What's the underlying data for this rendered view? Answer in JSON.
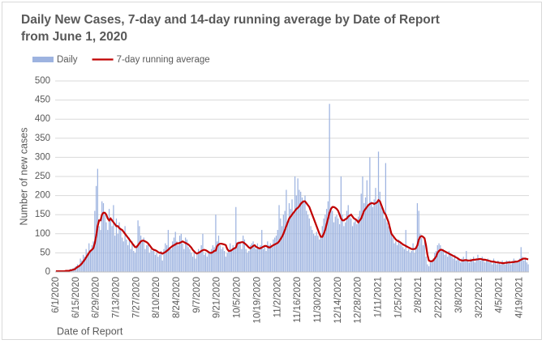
{
  "chart_data": {
    "type": "bar_line",
    "title": "Daily New Cases, 7-day and 14-day running average by Date of Report from June 1, 2020",
    "y_label": "Number of new cases",
    "x_label": "Date of Report",
    "ylim": [
      0,
      500
    ],
    "yticks": [
      0,
      50,
      100,
      150,
      200,
      250,
      300,
      350,
      400,
      450,
      500
    ],
    "grid": true,
    "categories": [
      "6/1/2020",
      null,
      null,
      null,
      null,
      null,
      null,
      null,
      null,
      null,
      null,
      null,
      null,
      null,
      "6/15/2020",
      null,
      null,
      null,
      null,
      null,
      null,
      null,
      null,
      null,
      null,
      null,
      null,
      null,
      "6/29/2020",
      null,
      null,
      null,
      null,
      null,
      null,
      null,
      null,
      null,
      null,
      null,
      null,
      null,
      "7/13/2020",
      null,
      null,
      null,
      null,
      null,
      null,
      null,
      null,
      null,
      null,
      null,
      null,
      null,
      "7/27/2020",
      null,
      null,
      null,
      null,
      null,
      null,
      null,
      null,
      null,
      null,
      null,
      null,
      null,
      "8/10/2020",
      null,
      null,
      null,
      null,
      null,
      null,
      null,
      null,
      null,
      null,
      null,
      null,
      null,
      "8/24/2020",
      null,
      null,
      null,
      null,
      null,
      null,
      null,
      null,
      null,
      null,
      null,
      null,
      null,
      "9/7/2020",
      null,
      null,
      null,
      null,
      null,
      null,
      null,
      null,
      null,
      null,
      null,
      null,
      null,
      "9/21/2020",
      null,
      null,
      null,
      null,
      null,
      null,
      null,
      null,
      null,
      null,
      null,
      null,
      null,
      "10/5/2020",
      null,
      null,
      null,
      null,
      null,
      null,
      null,
      null,
      null,
      null,
      null,
      null,
      null,
      "10/19/2020",
      null,
      null,
      null,
      null,
      null,
      null,
      null,
      null,
      null,
      null,
      null,
      null,
      null,
      "11/2/2020",
      null,
      null,
      null,
      null,
      null,
      null,
      null,
      null,
      null,
      null,
      null,
      null,
      null,
      "11/16/2020",
      null,
      null,
      null,
      null,
      null,
      null,
      null,
      null,
      null,
      null,
      null,
      null,
      null,
      "11/30/2020",
      null,
      null,
      null,
      null,
      null,
      null,
      null,
      null,
      null,
      null,
      null,
      null,
      null,
      "12/14/2020",
      null,
      null,
      null,
      null,
      null,
      null,
      null,
      null,
      null,
      null,
      null,
      null,
      null,
      "12/28/2020",
      null,
      null,
      null,
      null,
      null,
      null,
      null,
      null,
      null,
      null,
      null,
      null,
      null,
      "1/11/2021",
      null,
      null,
      null,
      null,
      null,
      null,
      null,
      null,
      null,
      null,
      null,
      null,
      null,
      "1/25/2021",
      null,
      null,
      null,
      null,
      null,
      null,
      null,
      null,
      null,
      null,
      null,
      null,
      null,
      "2/8/2021",
      null,
      null,
      null,
      null,
      null,
      null,
      null,
      null,
      null,
      null,
      null,
      null,
      null,
      "2/22/2021",
      null,
      null,
      null,
      null,
      null,
      null,
      null,
      null,
      null,
      null,
      null,
      null,
      null,
      "3/8/2021",
      null,
      null,
      null,
      null,
      null,
      null,
      null,
      null,
      null,
      null,
      null,
      null,
      null,
      "3/22/2021",
      null,
      null,
      null,
      null,
      null,
      null,
      null,
      null,
      null,
      null,
      null,
      null,
      null,
      "4/5/2021",
      null,
      null,
      null,
      null,
      null,
      null,
      null,
      null,
      null,
      null,
      null,
      null,
      null,
      "4/19/2021",
      null,
      null,
      null,
      null,
      null,
      null
    ],
    "series": [
      {
        "name": "Daily",
        "type": "bar",
        "color": "#9db3e0",
        "values": [
          1,
          3,
          2,
          1,
          4,
          2,
          2,
          5,
          3,
          4,
          8,
          6,
          10,
          12,
          15,
          20,
          18,
          35,
          30,
          45,
          40,
          60,
          50,
          75,
          55,
          70,
          80,
          160,
          225,
          270,
          120,
          110,
          185,
          180,
          150,
          130,
          110,
          165,
          140,
          120,
          175,
          95,
          140,
          100,
          130,
          110,
          90,
          80,
          120,
          85,
          70,
          90,
          60,
          80,
          55,
          50,
          70,
          135,
          120,
          95,
          80,
          90,
          60,
          70,
          75,
          50,
          60,
          55,
          60,
          45,
          50,
          40,
          45,
          55,
          30,
          60,
          75,
          70,
          110,
          65,
          60,
          80,
          90,
          105,
          80,
          70,
          95,
          100,
          75,
          60,
          90,
          85,
          65,
          60,
          50,
          40,
          55,
          35,
          45,
          60,
          55,
          70,
          100,
          45,
          50,
          40,
          55,
          50,
          60,
          70,
          65,
          150,
          80,
          95,
          70,
          60,
          65,
          55,
          40,
          50,
          60,
          75,
          55,
          70,
          60,
          170,
          70,
          80,
          75,
          60,
          95,
          85,
          60,
          50,
          55,
          70,
          75,
          80,
          65,
          60,
          75,
          60,
          70,
          110,
          60,
          65,
          55,
          80,
          70,
          75,
          65,
          85,
          90,
          95,
          110,
          175,
          140,
          120,
          150,
          160,
          215,
          130,
          180,
          165,
          190,
          150,
          250,
          200,
          245,
          215,
          210,
          195,
          185,
          200,
          160,
          150,
          140,
          120,
          110,
          100,
          95,
          105,
          95,
          85,
          90,
          120,
          140,
          150,
          165,
          185,
          440,
          170,
          160,
          130,
          145,
          150,
          140,
          125,
          250,
          150,
          120,
          130,
          160,
          175,
          150,
          140,
          120,
          130,
          135,
          125,
          145,
          160,
          205,
          250,
          180,
          195,
          240,
          175,
          300,
          185,
          170,
          190,
          220,
          185,
          315,
          210,
          170,
          160,
          140,
          285,
          130,
          120,
          110,
          100,
          90,
          75,
          80,
          70,
          85,
          75,
          70,
          65,
          60,
          110,
          55,
          60,
          50,
          55,
          75,
          50,
          60,
          180,
          160,
          100,
          90,
          70,
          80,
          40,
          20,
          15,
          25,
          30,
          35,
          50,
          55,
          70,
          75,
          70,
          55,
          60,
          45,
          50,
          40,
          55,
          45,
          40,
          35,
          45,
          30,
          35,
          30,
          25,
          35,
          40,
          30,
          55,
          30,
          25,
          35,
          30,
          40,
          25,
          35,
          45,
          35,
          30,
          40,
          35,
          25,
          30,
          35,
          25,
          30,
          20,
          35,
          25,
          20,
          30,
          25,
          20,
          30,
          25,
          20,
          30,
          25,
          30,
          20,
          25,
          35,
          30,
          25,
          30,
          35,
          65,
          40,
          30,
          35,
          25,
          20
        ]
      },
      {
        "name": "7-day running average",
        "type": "line",
        "color": "#c00000",
        "values": [
          2,
          2,
          2,
          2,
          2,
          2,
          2,
          3,
          3,
          3,
          4,
          5,
          6,
          7,
          10,
          13,
          15,
          18,
          22,
          27,
          32,
          38,
          44,
          50,
          55,
          58,
          62,
          75,
          95,
          120,
          135,
          135,
          150,
          155,
          155,
          150,
          140,
          135,
          140,
          135,
          130,
          125,
          120,
          120,
          115,
          112,
          110,
          105,
          100,
          95,
          90,
          85,
          80,
          75,
          70,
          65,
          65,
          70,
          75,
          80,
          82,
          82,
          80,
          78,
          75,
          70,
          65,
          60,
          58,
          57,
          55,
          52,
          50,
          50,
          48,
          50,
          52,
          55,
          58,
          62,
          65,
          68,
          70,
          72,
          75,
          75,
          76,
          78,
          80,
          78,
          76,
          74,
          72,
          68,
          64,
          58,
          54,
          50,
          48,
          50,
          52,
          55,
          57,
          58,
          57,
          55,
          52,
          50,
          50,
          52,
          55,
          56,
          68,
          72,
          74,
          74,
          73,
          72,
          70,
          60,
          55,
          55,
          57,
          60,
          62,
          64,
          75,
          76,
          77,
          78,
          78,
          75,
          72,
          68,
          64,
          62,
          65,
          68,
          70,
          66,
          64,
          62,
          62,
          64,
          66,
          68,
          68,
          66,
          64,
          65,
          68,
          70,
          72,
          74,
          76,
          80,
          86,
          92,
          100,
          110,
          120,
          130,
          140,
          145,
          150,
          155,
          160,
          165,
          168,
          172,
          178,
          182,
          185,
          185,
          180,
          175,
          170,
          160,
          150,
          140,
          130,
          120,
          110,
          100,
          92,
          92,
          100,
          110,
          125,
          140,
          155,
          165,
          170,
          170,
          168,
          165,
          160,
          150,
          140,
          135,
          135,
          138,
          140,
          145,
          148,
          150,
          145,
          140,
          138,
          135,
          130,
          135,
          140,
          150,
          160,
          165,
          170,
          175,
          178,
          180,
          180,
          178,
          180,
          182,
          188,
          185,
          175,
          165,
          155,
          150,
          140,
          130,
          115,
          100,
          95,
          90,
          85,
          82,
          80,
          78,
          75,
          72,
          70,
          68,
          66,
          64,
          62,
          60,
          60,
          60,
          62,
          70,
          85,
          92,
          94,
          92,
          88,
          70,
          45,
          30,
          28,
          28,
          30,
          35,
          40,
          50,
          55,
          58,
          58,
          56,
          54,
          52,
          50,
          48,
          46,
          44,
          42,
          40,
          38,
          36,
          33,
          31,
          30,
          30,
          31,
          31,
          30,
          30,
          30,
          31,
          32,
          32,
          33,
          33,
          34,
          34,
          33,
          32,
          32,
          31,
          30,
          29,
          28,
          27,
          27,
          26,
          25,
          25,
          24,
          24,
          23,
          23,
          24,
          24,
          25,
          25,
          25,
          26,
          26,
          27,
          27,
          28,
          30,
          32,
          34,
          35,
          35,
          34,
          33
        ]
      }
    ]
  }
}
